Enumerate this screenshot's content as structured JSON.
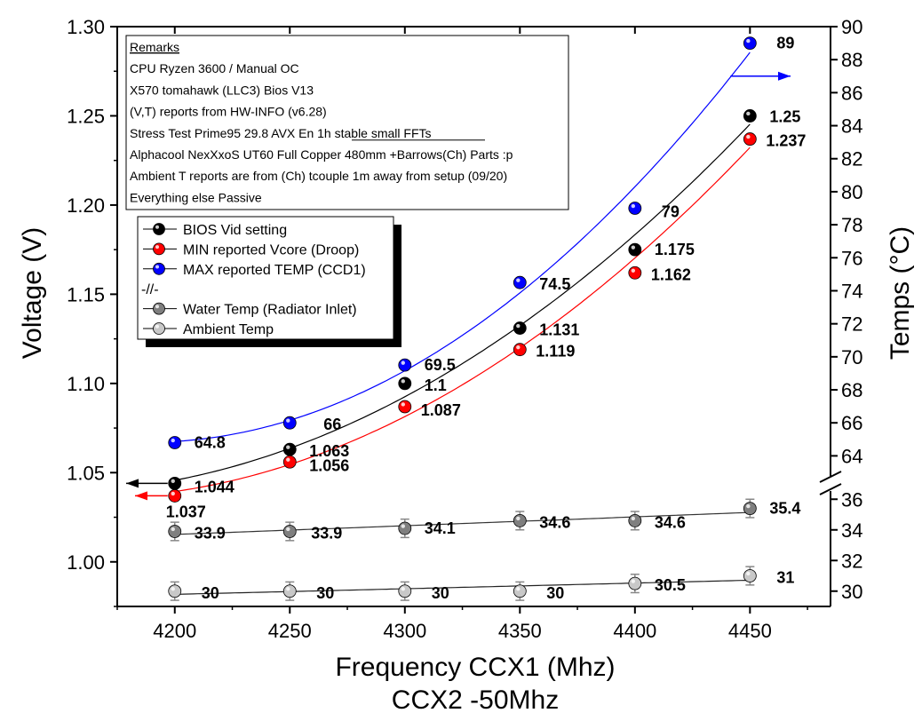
{
  "chart_data": {
    "type": "scatter",
    "xlabel": "Frequency CCX1 (Mhz)",
    "xlabel2": "CCX2 -50Mhz",
    "ylabel_left": "Voltage (V)",
    "ylabel_right": "Temps (°C)",
    "x": [
      4200,
      4250,
      4300,
      4350,
      4400,
      4450
    ],
    "x_ticks": [
      "4200",
      "4250",
      "4300",
      "4350",
      "4400",
      "4450"
    ],
    "xlim": [
      4175,
      4485
    ],
    "left_axis": {
      "ylim": [
        0.975,
        1.3
      ],
      "ticks": [
        "1.00",
        "1.05",
        "1.10",
        "1.15",
        "1.20",
        "1.25",
        "1.30"
      ]
    },
    "right_axis": {
      "upper": {
        "ylim": [
          62.3,
          90
        ],
        "ticks": [
          "64",
          "66",
          "68",
          "70",
          "72",
          "74",
          "76",
          "78",
          "80",
          "82",
          "84",
          "86",
          "88",
          "90"
        ]
      },
      "lower": {
        "ylim": [
          29,
          37
        ],
        "ticks": [
          "30",
          "32",
          "34",
          "36"
        ]
      },
      "break": true
    },
    "series": [
      {
        "name": "BIOS Vid setting",
        "axis": "left",
        "color": "#000000",
        "values": [
          1.044,
          1.063,
          1.1,
          1.131,
          1.175,
          1.25
        ],
        "labels": [
          "1.044",
          "1.063",
          "1.1",
          "1.131",
          "1.175",
          "1.25"
        ]
      },
      {
        "name": "MIN reported Vcore (Droop)",
        "axis": "left",
        "color": "#ff0000",
        "values": [
          1.037,
          1.056,
          1.087,
          1.119,
          1.162,
          1.237
        ],
        "labels": [
          "1.037",
          "1.056",
          "1.087",
          "1.119",
          "1.162",
          "1.237"
        ]
      },
      {
        "name": "MAX reported TEMP (CCD1)",
        "axis": "right-upper",
        "color": "#0000ff",
        "values": [
          64.8,
          66,
          69.5,
          74.5,
          79,
          89
        ],
        "labels": [
          "64.8",
          "66",
          "69.5",
          "74.5",
          "79",
          "89"
        ]
      },
      {
        "name": "Water Temp (Radiator Inlet)",
        "axis": "right-lower",
        "color": "#7f7f7f",
        "values": [
          33.9,
          33.9,
          34.1,
          34.6,
          34.6,
          35.4
        ],
        "labels": [
          "33.9",
          "33.9",
          "34.1",
          "34.6",
          "34.6",
          "35.4"
        ]
      },
      {
        "name": "Ambient Temp",
        "axis": "right-lower",
        "color": "#c8c8c8",
        "values": [
          30,
          30,
          30,
          30,
          30.5,
          31
        ],
        "labels": [
          "30",
          "30",
          "30",
          "30",
          "30.5",
          "31"
        ]
      }
    ],
    "legend": {
      "position": "upper-left",
      "items": [
        {
          "text": "BIOS Vid setting",
          "color": "#000000"
        },
        {
          "text": "MIN reported Vcore (Droop)",
          "color": "#ff0000"
        },
        {
          "text": "MAX reported TEMP (CCD1)",
          "color": "#0000ff"
        },
        {
          "text": "-//-",
          "color": ""
        },
        {
          "text": "Water Temp (Radiator Inlet)",
          "color": "#7f7f7f"
        },
        {
          "text": "Ambient Temp",
          "color": "#c8c8c8"
        }
      ]
    },
    "remarks": [
      "Remarks",
      "CPU Ryzen 3600 / Manual OC",
      "X570 tomahawk (LLC3) Bios V13",
      "(V,T) reports from HW-INFO (v6.28)",
      "Stress Test Prime95 29.8 AVX En 1h stable small FFTs",
      "Alphacool NexXxoS UT60 Full Copper 480mm +Barrows(Ch) Parts :p",
      "Ambient T reports are from (Ch) tcouple 1m away from setup (09/20)",
      "Everything else Passive"
    ]
  }
}
